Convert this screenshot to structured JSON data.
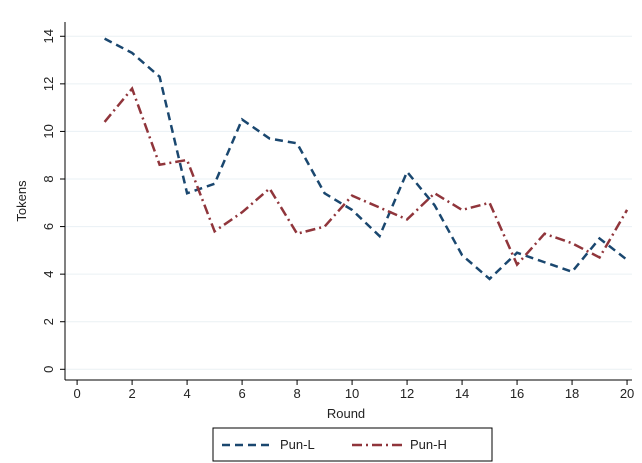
{
  "chart_data": {
    "type": "line",
    "x_label": "Round",
    "y_label": "Tokens",
    "x": [
      1,
      2,
      3,
      4,
      5,
      6,
      7,
      8,
      9,
      10,
      11,
      12,
      13,
      14,
      15,
      16,
      17,
      18,
      19,
      20
    ],
    "series": [
      {
        "name": "Pun-L",
        "color": "#1a476f",
        "dash": "8,5",
        "values": [
          13.9,
          13.3,
          12.3,
          7.4,
          7.8,
          10.5,
          9.7,
          9.5,
          7.4,
          6.7,
          5.6,
          8.3,
          6.9,
          4.8,
          3.8,
          4.9,
          4.5,
          4.1,
          5.5,
          4.6
        ]
      },
      {
        "name": "Pun-H",
        "color": "#90353b",
        "dash": "10,4,2,4",
        "values": [
          10.4,
          11.8,
          8.6,
          8.8,
          5.8,
          6.6,
          7.6,
          5.7,
          6.0,
          7.3,
          6.8,
          6.3,
          7.4,
          6.7,
          7.0,
          4.4,
          5.7,
          5.3,
          4.7,
          6.7
        ]
      }
    ],
    "xlim": [
      -0.44,
      20.18
    ],
    "xticks": [
      0,
      2,
      4,
      6,
      8,
      10,
      12,
      14,
      16,
      18,
      20
    ],
    "ylim": [
      -0.45,
      14.6
    ],
    "yticks": [
      0,
      2,
      4,
      6,
      8,
      10,
      12,
      14
    ],
    "grid": true,
    "legend": "bottom"
  }
}
